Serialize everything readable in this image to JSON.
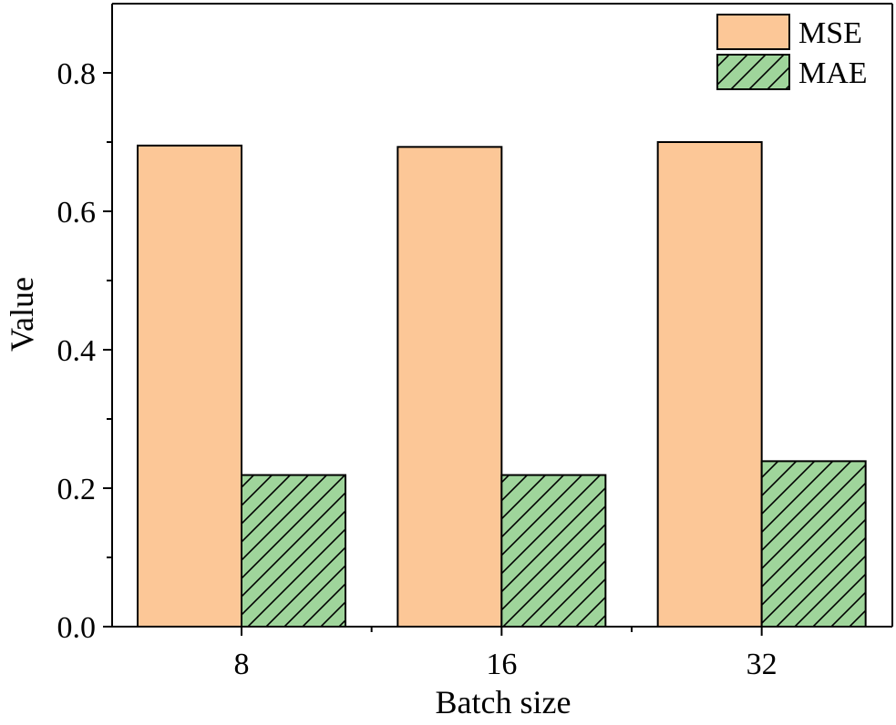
{
  "chart_data": {
    "type": "bar",
    "title": "",
    "xlabel": "Batch size",
    "ylabel": "Value",
    "categories": [
      "8",
      "16",
      "32"
    ],
    "series": [
      {
        "name": "MSE",
        "values": [
          0.695,
          0.693,
          0.7
        ],
        "color": "#fcc797",
        "pattern": "solid"
      },
      {
        "name": "MAE",
        "values": [
          0.219,
          0.219,
          0.239
        ],
        "color": "#9fd59b",
        "pattern": "hatch"
      }
    ],
    "ylim": [
      0,
      0.9
    ],
    "yticks": [
      0.0,
      0.2,
      0.4,
      0.6,
      0.8
    ],
    "ytick_labels": [
      "0.0",
      "0.2",
      "0.4",
      "0.6",
      "0.8"
    ],
    "minor_ytick_step": 0.1,
    "grid": false,
    "legend": "top-right"
  }
}
